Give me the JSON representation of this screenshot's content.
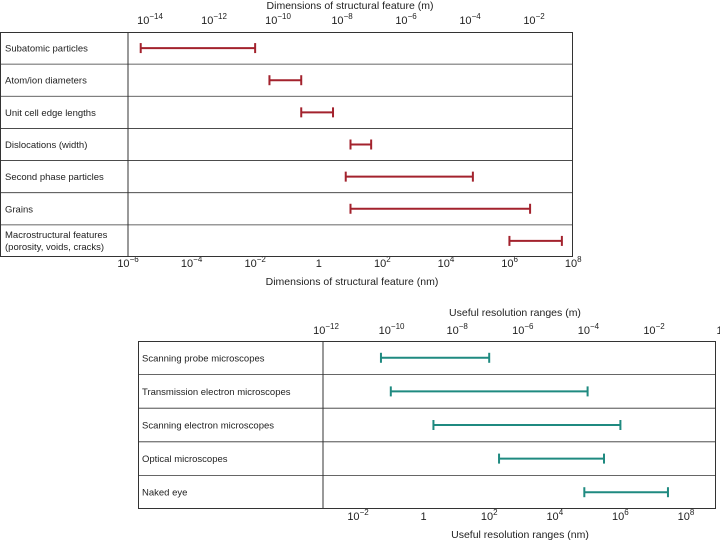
{
  "chart_data": [
    {
      "type": "range-bar",
      "title": "Dimensions of structural feature (m)",
      "xlabel": "Dimensions of structural feature (nm)",
      "x_scale": "log10",
      "top_axis": {
        "unit": "m",
        "base": "10",
        "exponents": [
          "−14",
          "−12",
          "−10",
          "−8",
          "−6",
          "−4",
          "−2"
        ]
      },
      "bottom_axis": {
        "unit": "nm",
        "base": "10",
        "ticks": [
          {
            "base": "10",
            "exp": "−6"
          },
          {
            "base": "10",
            "exp": "−4"
          },
          {
            "base": "10",
            "exp": "−2"
          },
          {
            "base": "1",
            "exp": ""
          },
          {
            "base": "10",
            "exp": "2"
          },
          {
            "base": "10",
            "exp": "4"
          },
          {
            "base": "10",
            "exp": "6"
          },
          {
            "base": "10",
            "exp": "8"
          }
        ]
      },
      "xlim_log10_nm": [
        -6,
        8
      ],
      "color": "#a3222d",
      "rows": [
        {
          "label": "Subatomic particles",
          "min_log10_nm": -5.6,
          "max_log10_nm": -2
        },
        {
          "label": "Atom/ion diameters",
          "min_log10_nm": -1.55,
          "max_log10_nm": -0.55
        },
        {
          "label": "Unit cell edge lengths",
          "min_log10_nm": -0.55,
          "max_log10_nm": 0.45
        },
        {
          "label": "Dislocations (width)",
          "min_log10_nm": 1,
          "max_log10_nm": 1.65
        },
        {
          "label": "Second phase particles",
          "min_log10_nm": 0.85,
          "max_log10_nm": 4.85
        },
        {
          "label": "Grains",
          "min_log10_nm": 1,
          "max_log10_nm": 6.65
        },
        {
          "label": "Macrostructural features",
          "label2": "(porosity, voids, cracks)",
          "min_log10_nm": 6,
          "max_log10_nm": 7.65
        }
      ]
    },
    {
      "type": "range-bar",
      "title": "Useful resolution ranges (m)",
      "xlabel": "Useful resolution ranges (nm)",
      "x_scale": "log10",
      "top_axis": {
        "unit": "m",
        "base": "10",
        "ticks": [
          {
            "base": "10",
            "exp": "−12"
          },
          {
            "base": "10",
            "exp": "−10"
          },
          {
            "base": "10",
            "exp": "−8"
          },
          {
            "base": "10",
            "exp": "−6"
          },
          {
            "base": "10",
            "exp": "−4"
          },
          {
            "base": "10",
            "exp": "−2"
          },
          {
            "base": "1",
            "exp": ""
          }
        ]
      },
      "bottom_axis": {
        "unit": "nm",
        "base": "10",
        "ticks": [
          {
            "base": "10",
            "exp": "−2"
          },
          {
            "base": "1",
            "exp": ""
          },
          {
            "base": "10",
            "exp": "2"
          },
          {
            "base": "10",
            "exp": "4"
          },
          {
            "base": "10",
            "exp": "6"
          },
          {
            "base": "10",
            "exp": "8"
          }
        ]
      },
      "xlim_log10_nm": [
        -3,
        9
      ],
      "color": "#1f8a80",
      "rows": [
        {
          "label": "Scanning probe microscopes",
          "min_log10_nm": -1.3,
          "max_log10_nm": 2
        },
        {
          "label": "Transmission electron microscopes",
          "min_log10_nm": -1,
          "max_log10_nm": 5
        },
        {
          "label": "Scanning electron microscopes",
          "min_log10_nm": 0.3,
          "max_log10_nm": 6
        },
        {
          "label": "Optical microscopes",
          "min_log10_nm": 2.3,
          "max_log10_nm": 5.5
        },
        {
          "label": "Naked eye",
          "min_log10_nm": 4.9,
          "max_log10_nm": 7.45
        }
      ]
    }
  ]
}
